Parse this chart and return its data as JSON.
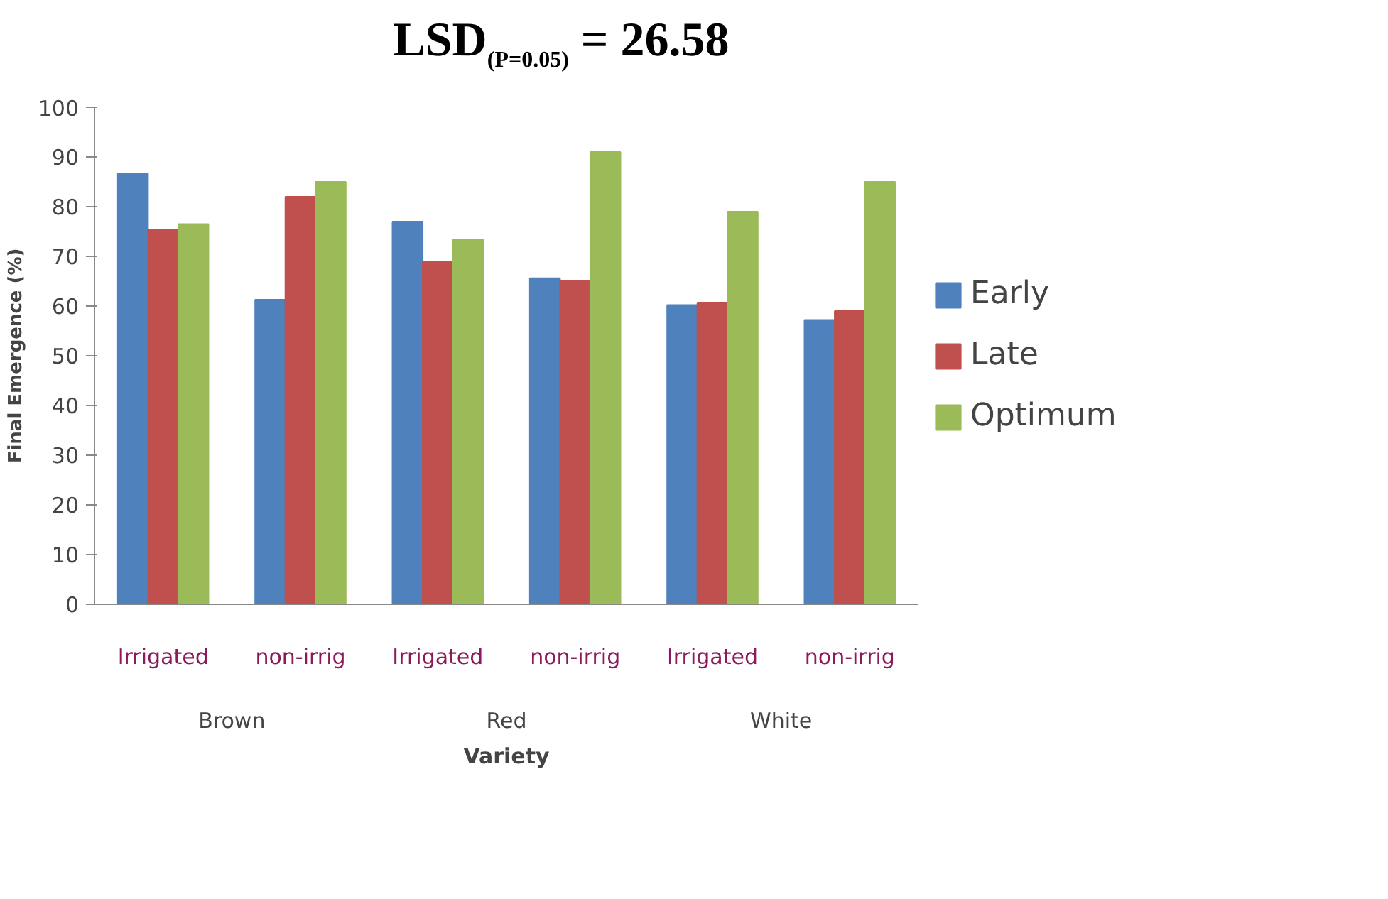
{
  "chart_data": {
    "type": "bar",
    "title": "LSD$_{(P=0.05)}$ = 26.58",
    "xlabel": "Variety",
    "ylabel": "Final Emergence (%)",
    "categories": [
      "Irrigated",
      "non-irrig",
      "Irrigated",
      "non-irrig",
      "Irrigated",
      "non-irrig"
    ],
    "annotations": [
      "Brown",
      "Red",
      "White"
    ],
    "series": [
      {
        "name": "Early",
        "color": "#4f81bd",
        "values": [
          86.7,
          61.3,
          77,
          65.6,
          60.2,
          57.2
        ]
      },
      {
        "name": "Late",
        "color": "#c0504d",
        "values": [
          75.3,
          82,
          69,
          65,
          60.7,
          59
        ]
      },
      {
        "name": "Optimum",
        "color": "#9bbb59",
        "values": [
          76.5,
          85,
          73.4,
          91,
          79,
          85
        ]
      }
    ],
    "ylim": [
      0,
      100
    ],
    "yticks": [
      0,
      10,
      20,
      30,
      40,
      50,
      60,
      70,
      80,
      90,
      100
    ],
    "grid": false,
    "legend": "right"
  }
}
